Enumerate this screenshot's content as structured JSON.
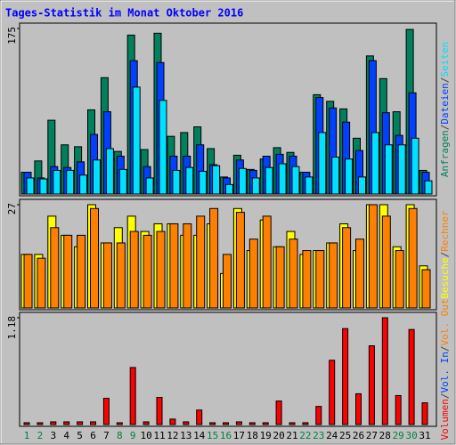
{
  "title": "Tages-Statistik im Monat Oktober 2016",
  "legend_separator": "/",
  "chart_data": [
    {
      "type": "bar",
      "ylim": [
        0,
        175
      ],
      "yticks": [
        175
      ],
      "series": [
        {
          "name": "Anfragen",
          "color": "#00805c",
          "values": [
            23,
            35,
            78,
            52,
            50,
            89,
            123,
            45,
            168,
            47,
            170,
            61,
            65,
            71,
            48,
            18,
            41,
            26,
            37,
            49,
            44,
            23,
            105,
            98,
            90,
            59,
            146,
            122,
            87,
            174,
            25
          ]
        },
        {
          "name": "Dateien",
          "color": "#0040ff",
          "values": [
            23,
            17,
            29,
            28,
            34,
            63,
            87,
            40,
            141,
            29,
            139,
            40,
            40,
            52,
            31,
            17,
            36,
            25,
            40,
            42,
            40,
            23,
            102,
            91,
            76,
            46,
            141,
            86,
            62,
            107,
            23
          ]
        },
        {
          "name": "Seiten",
          "color": "#00e0ff",
          "values": [
            17,
            16,
            25,
            25,
            20,
            36,
            48,
            26,
            113,
            17,
            99,
            25,
            28,
            24,
            30,
            10,
            27,
            17,
            28,
            32,
            29,
            18,
            65,
            39,
            37,
            18,
            65,
            52,
            52,
            59,
            14
          ]
        }
      ]
    },
    {
      "type": "bar",
      "ylim": [
        0,
        27
      ],
      "yticks": [
        27
      ],
      "series": [
        {
          "name": "Besuche",
          "color": "#ffff00",
          "values": [
            14,
            14,
            24,
            19,
            16,
            27,
            17,
            21,
            24,
            20,
            22,
            22,
            19,
            19,
            22,
            9,
            26,
            15,
            23,
            16,
            20,
            14,
            15,
            17,
            22,
            15,
            27,
            27,
            16,
            27,
            11
          ]
        },
        {
          "name": "Rechner",
          "color": "#ff8000",
          "values": [
            14,
            13,
            21,
            19,
            19,
            26,
            17,
            17,
            20,
            19,
            20,
            22,
            22,
            24,
            26,
            14,
            25,
            18,
            24,
            16,
            18,
            15,
            15,
            17,
            21,
            18,
            27,
            24,
            15,
            26,
            10
          ]
        }
      ]
    },
    {
      "type": "bar",
      "ylim": [
        0,
        1.18
      ],
      "yticks": [
        1.18
      ],
      "categories": [
        "1",
        "2",
        "3",
        "4",
        "5",
        "6",
        "7",
        "8",
        "9",
        "10",
        "11",
        "12",
        "13",
        "14",
        "15",
        "16",
        "17",
        "18",
        "19",
        "20",
        "21",
        "22",
        "23",
        "24",
        "25",
        "26",
        "27",
        "28",
        "29",
        "30",
        "31"
      ],
      "category_colors": [
        "#008040",
        "#008040",
        "#000000",
        "#000000",
        "#000000",
        "#000000",
        "#000000",
        "#008040",
        "#008040",
        "#000000",
        "#000000",
        "#000000",
        "#000000",
        "#000000",
        "#008040",
        "#008040",
        "#000000",
        "#000000",
        "#000000",
        "#000000",
        "#000000",
        "#008040",
        "#008040",
        "#000000",
        "#000000",
        "#000000",
        "#000000",
        "#000000",
        "#008040",
        "#008040",
        "#000000"
      ],
      "series": [
        {
          "name": "Volumen",
          "color": "#ff0000",
          "values": [
            0.02,
            0.02,
            0.03,
            0.03,
            0.03,
            0.03,
            0.29,
            0.02,
            0.63,
            0.03,
            0.3,
            0.06,
            0.03,
            0.16,
            0.02,
            0.02,
            0.03,
            0.02,
            0.02,
            0.26,
            0.02,
            0.02,
            0.2,
            0.71,
            1.06,
            0.34,
            0.87,
            1.18,
            0.32,
            1.05,
            0.24
          ]
        }
      ],
      "legend_extra": [
        {
          "name": "Vol. In",
          "color": "#0040ff"
        },
        {
          "name": "Vol. Out",
          "color": "#ff8000"
        }
      ]
    }
  ]
}
